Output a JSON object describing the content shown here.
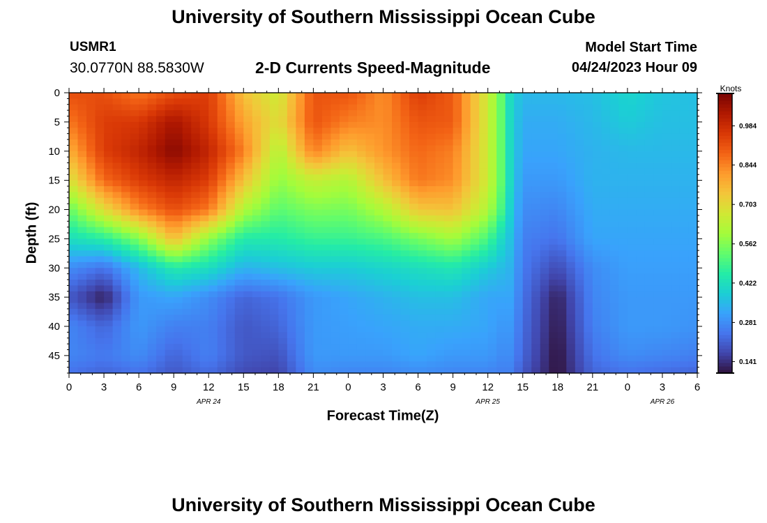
{
  "header": {
    "title": "University of Southern Mississippi Ocean Cube",
    "station_id": "USMR1",
    "coordinates": "30.0770N  88.5830W",
    "subtitle": "2-D Currents Speed-Magnitude",
    "model_start_label": "Model Start Time",
    "model_start_value": "04/24/2023 Hour 09"
  },
  "footer": {
    "title": "University of Southern Mississippi Ocean Cube"
  },
  "colors": {
    "colormap": [
      "#30123b",
      "#4145ab",
      "#4675ed",
      "#39a2fc",
      "#1bcfd4",
      "#24eca6",
      "#61fc6c",
      "#a4fc3b",
      "#d1e834",
      "#f3c63a",
      "#fe9b2d",
      "#f36315",
      "#d93806",
      "#b11901",
      "#7a0403"
    ],
    "axis": "#000000",
    "background": "#ffffff"
  },
  "chart_data": {
    "type": "heatmap",
    "title": "2-D Currents Speed-Magnitude",
    "xlabel": "Forecast Time(Z)",
    "ylabel": "Depth (ft)",
    "colorbar_label": "Knots",
    "xlim": [
      0,
      54
    ],
    "ylim": [
      0,
      48
    ],
    "x_ticks": [
      0,
      3,
      6,
      9,
      12,
      15,
      18,
      21,
      24,
      27,
      30,
      33,
      36,
      39,
      42,
      45,
      48,
      51,
      54
    ],
    "x_tick_labels": [
      "0",
      "3",
      "6",
      "9",
      "12",
      "15",
      "18",
      "21",
      "0",
      "3",
      "6",
      "9",
      "12",
      "15",
      "18",
      "21",
      "0",
      "3",
      "6"
    ],
    "y_ticks": [
      0,
      5,
      10,
      15,
      20,
      25,
      30,
      35,
      40,
      45
    ],
    "y_tick_labels": [
      "0",
      "5",
      "10",
      "15",
      "20",
      "25",
      "30",
      "35",
      "40",
      "45"
    ],
    "date_labels": [
      {
        "x": 12,
        "label": "APR 24"
      },
      {
        "x": 36,
        "label": "APR 25"
      },
      {
        "x": 51,
        "label": "APR 26"
      }
    ],
    "colorbar_range": [
      0.1,
      1.1
    ],
    "colorbar_ticks": [
      0.141,
      0.281,
      0.422,
      0.562,
      0.703,
      0.844,
      0.984
    ],
    "colorbar_tick_labels": [
      "0.141",
      "0.281",
      "0.422",
      "0.562",
      "0.703",
      "0.844",
      "0.984"
    ],
    "grid_x": [
      0,
      3,
      6,
      9,
      12,
      15,
      18,
      21,
      24,
      27,
      30,
      33,
      36,
      37,
      38,
      39,
      42,
      45,
      48,
      51,
      54
    ],
    "grid_depth": [
      0,
      5,
      10,
      15,
      20,
      25,
      30,
      35,
      40,
      45,
      48
    ],
    "values": [
      [
        0.92,
        0.92,
        0.86,
        0.92,
        0.95,
        0.75,
        0.66,
        0.91,
        0.91,
        0.83,
        0.95,
        0.9,
        0.66,
        0.55,
        0.4,
        0.35,
        0.35,
        0.36,
        0.4,
        0.37,
        0.36
      ],
      [
        0.86,
        0.95,
        0.96,
        1.04,
        0.96,
        0.8,
        0.69,
        0.91,
        0.85,
        0.83,
        0.91,
        0.9,
        0.66,
        0.55,
        0.4,
        0.33,
        0.33,
        0.35,
        0.38,
        0.36,
        0.36
      ],
      [
        0.78,
        0.95,
        1.0,
        1.08,
        1.0,
        0.85,
        0.62,
        0.85,
        0.75,
        0.82,
        0.88,
        0.85,
        0.66,
        0.55,
        0.4,
        0.32,
        0.32,
        0.34,
        0.35,
        0.35,
        0.35
      ],
      [
        0.68,
        0.88,
        0.95,
        1.0,
        0.95,
        0.75,
        0.58,
        0.65,
        0.62,
        0.75,
        0.86,
        0.83,
        0.66,
        0.55,
        0.4,
        0.3,
        0.3,
        0.34,
        0.34,
        0.34,
        0.34
      ],
      [
        0.53,
        0.7,
        0.84,
        0.92,
        0.86,
        0.62,
        0.52,
        0.56,
        0.55,
        0.62,
        0.74,
        0.75,
        0.62,
        0.52,
        0.38,
        0.28,
        0.27,
        0.33,
        0.33,
        0.33,
        0.33
      ],
      [
        0.42,
        0.46,
        0.56,
        0.76,
        0.58,
        0.45,
        0.45,
        0.48,
        0.48,
        0.5,
        0.55,
        0.6,
        0.5,
        0.42,
        0.36,
        0.26,
        0.24,
        0.32,
        0.32,
        0.32,
        0.32
      ],
      [
        0.28,
        0.24,
        0.35,
        0.45,
        0.42,
        0.34,
        0.36,
        0.38,
        0.38,
        0.4,
        0.42,
        0.44,
        0.38,
        0.36,
        0.34,
        0.25,
        0.18,
        0.28,
        0.31,
        0.31,
        0.31
      ],
      [
        0.2,
        0.12,
        0.3,
        0.32,
        0.28,
        0.22,
        0.24,
        0.3,
        0.32,
        0.34,
        0.36,
        0.36,
        0.32,
        0.32,
        0.32,
        0.24,
        0.12,
        0.27,
        0.3,
        0.3,
        0.3
      ],
      [
        0.27,
        0.22,
        0.3,
        0.26,
        0.26,
        0.2,
        0.22,
        0.3,
        0.31,
        0.32,
        0.33,
        0.33,
        0.32,
        0.3,
        0.3,
        0.23,
        0.11,
        0.26,
        0.3,
        0.3,
        0.29
      ],
      [
        0.27,
        0.25,
        0.28,
        0.22,
        0.26,
        0.2,
        0.19,
        0.3,
        0.3,
        0.3,
        0.32,
        0.3,
        0.3,
        0.28,
        0.28,
        0.22,
        0.1,
        0.24,
        0.28,
        0.27,
        0.26
      ],
      [
        0.24,
        0.22,
        0.24,
        0.2,
        0.23,
        0.18,
        0.17,
        0.28,
        0.27,
        0.27,
        0.28,
        0.27,
        0.27,
        0.26,
        0.26,
        0.2,
        0.1,
        0.22,
        0.24,
        0.23,
        0.22
      ]
    ]
  }
}
